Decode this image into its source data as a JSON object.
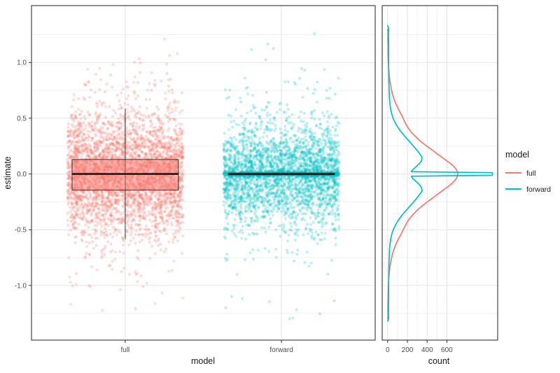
{
  "colors": {
    "full": "#F8766D",
    "forward": "#00BFC4",
    "grid_major": "#E3E3E3",
    "grid_minor": "#F1F1F1",
    "panel_border": "#333333",
    "axis_text": "#4D4D4D",
    "box_median": "#1A1A1A",
    "background": "#FFFFFF"
  },
  "legend": {
    "title": "model",
    "entries": [
      {
        "label": "full",
        "color": "#F8766D"
      },
      {
        "label": "forward",
        "color": "#00BFC4"
      }
    ]
  },
  "chart_data": [
    {
      "type": "scatter",
      "panel": "left",
      "title": "",
      "xlabel": "model",
      "ylabel": "estimate",
      "categories": [
        "full",
        "forward"
      ],
      "yticks": [
        -1.0,
        -0.5,
        0.0,
        0.5,
        1.0
      ],
      "ytick_labels": [
        "-1.0",
        "-0.5",
        "0.0",
        "0.5",
        "1.0"
      ],
      "yticks_minor": [
        -1.25,
        -0.75,
        -0.25,
        0.25,
        0.75,
        1.25
      ],
      "ylim": [
        -1.49,
        1.51
      ],
      "jitter_width": 0.37,
      "point_alpha": 0.25,
      "series": [
        {
          "name": "full",
          "color": "#F8766D",
          "n_points": 3600,
          "distribution": {
            "mixture": [
              {
                "weight": 0.88,
                "sd": 0.27
              },
              {
                "weight": 0.12,
                "sd": 0.52
              }
            ],
            "clip": 1.28
          },
          "boxplot": {
            "lower_whisker": -0.585,
            "q1": -0.145,
            "median": 0.0,
            "q3": 0.13,
            "upper_whisker": 0.585,
            "box_halfwidth": 0.34
          }
        },
        {
          "name": "forward",
          "color": "#00BFC4",
          "n_points": 3600,
          "distribution": {
            "mixture": [
              {
                "weight": 0.22,
                "sd": 0.012
              },
              {
                "weight": 0.63,
                "sd": 0.22
              },
              {
                "weight": 0.12,
                "sd": 0.38
              },
              {
                "weight": 0.03,
                "sd": 0.6
              }
            ],
            "clip": 1.3
          },
          "boxplot": {
            "lower_whisker": -0.01,
            "q1": -0.008,
            "median": 0.0,
            "q3": 0.008,
            "upper_whisker": 0.01,
            "box_halfwidth": 0.34
          }
        }
      ]
    },
    {
      "type": "line",
      "panel": "right",
      "title": "",
      "xlabel": "count",
      "ylabel": "",
      "xticks": [
        0,
        200,
        400,
        600
      ],
      "xticks_minor": [
        100,
        300,
        500
      ],
      "xlim": [
        -55,
        1115
      ],
      "ylim": [
        -1.49,
        1.51
      ],
      "series": [
        {
          "name": "full",
          "color": "#F8766D",
          "points": [
            [
              1.3,
              1
            ],
            [
              1.26,
              3
            ],
            [
              1.2,
              2
            ],
            [
              1.14,
              4
            ],
            [
              1.08,
              3
            ],
            [
              1.02,
              6
            ],
            [
              0.97,
              9
            ],
            [
              0.92,
              13
            ],
            [
              0.87,
              18
            ],
            [
              0.82,
              26
            ],
            [
              0.77,
              36
            ],
            [
              0.72,
              48
            ],
            [
              0.67,
              65
            ],
            [
              0.62,
              88
            ],
            [
              0.57,
              115
            ],
            [
              0.53,
              140
            ],
            [
              0.49,
              162
            ],
            [
              0.46,
              178
            ],
            [
              0.43,
              196
            ],
            [
              0.4,
              218
            ],
            [
              0.37,
              244
            ],
            [
              0.34,
              278
            ],
            [
              0.31,
              312
            ],
            [
              0.28,
              352
            ],
            [
              0.25,
              398
            ],
            [
              0.22,
              444
            ],
            [
              0.19,
              488
            ],
            [
              0.16,
              534
            ],
            [
              0.13,
              580
            ],
            [
              0.1,
              628
            ],
            [
              0.07,
              668
            ],
            [
              0.04,
              696
            ],
            [
              0.01,
              712
            ],
            [
              -0.02,
              708
            ],
            [
              -0.05,
              688
            ],
            [
              -0.08,
              658
            ],
            [
              -0.11,
              618
            ],
            [
              -0.14,
              570
            ],
            [
              -0.17,
              524
            ],
            [
              -0.2,
              478
            ],
            [
              -0.23,
              434
            ],
            [
              -0.26,
              388
            ],
            [
              -0.29,
              344
            ],
            [
              -0.32,
              306
            ],
            [
              -0.35,
              272
            ],
            [
              -0.38,
              240
            ],
            [
              -0.41,
              214
            ],
            [
              -0.44,
              192
            ],
            [
              -0.47,
              175
            ],
            [
              -0.5,
              158
            ],
            [
              -0.54,
              136
            ],
            [
              -0.58,
              110
            ],
            [
              -0.63,
              84
            ],
            [
              -0.68,
              62
            ],
            [
              -0.73,
              46
            ],
            [
              -0.78,
              34
            ],
            [
              -0.83,
              24
            ],
            [
              -0.88,
              17
            ],
            [
              -0.93,
              12
            ],
            [
              -0.99,
              8
            ],
            [
              -1.05,
              5
            ],
            [
              -1.12,
              4
            ],
            [
              -1.19,
              2
            ],
            [
              -1.26,
              3
            ],
            [
              -1.3,
              1
            ]
          ]
        },
        {
          "name": "forward",
          "color": "#00BFC4",
          "points": [
            [
              1.33,
              0
            ],
            [
              1.31,
              10
            ],
            [
              1.24,
              9
            ],
            [
              1.17,
              11
            ],
            [
              1.1,
              10
            ],
            [
              1.02,
              11
            ],
            [
              0.95,
              10
            ],
            [
              0.88,
              12
            ],
            [
              0.81,
              13
            ],
            [
              0.74,
              15
            ],
            [
              0.68,
              18
            ],
            [
              0.63,
              23
            ],
            [
              0.58,
              31
            ],
            [
              0.53,
              44
            ],
            [
              0.49,
              60
            ],
            [
              0.45,
              82
            ],
            [
              0.41,
              110
            ],
            [
              0.37,
              144
            ],
            [
              0.33,
              182
            ],
            [
              0.29,
              222
            ],
            [
              0.25,
              262
            ],
            [
              0.21,
              300
            ],
            [
              0.18,
              326
            ],
            [
              0.15,
              348
            ],
            [
              0.12,
              344
            ],
            [
              0.09,
              318
            ],
            [
              0.06,
              282
            ],
            [
              0.04,
              256
            ],
            [
              0.02,
              240
            ],
            [
              0.012,
              1058
            ],
            [
              0.0,
              1065
            ],
            [
              -0.012,
              1058
            ],
            [
              -0.02,
              240
            ],
            [
              -0.04,
              254
            ],
            [
              -0.06,
              280
            ],
            [
              -0.09,
              316
            ],
            [
              -0.12,
              342
            ],
            [
              -0.15,
              350
            ],
            [
              -0.18,
              328
            ],
            [
              -0.21,
              302
            ],
            [
              -0.25,
              264
            ],
            [
              -0.29,
              224
            ],
            [
              -0.33,
              184
            ],
            [
              -0.37,
              146
            ],
            [
              -0.41,
              112
            ],
            [
              -0.45,
              84
            ],
            [
              -0.49,
              62
            ],
            [
              -0.53,
              45
            ],
            [
              -0.58,
              32
            ],
            [
              -0.63,
              24
            ],
            [
              -0.68,
              19
            ],
            [
              -0.74,
              16
            ],
            [
              -0.81,
              14
            ],
            [
              -0.88,
              12
            ],
            [
              -0.95,
              11
            ],
            [
              -1.02,
              10
            ],
            [
              -1.1,
              11
            ],
            [
              -1.17,
              10
            ],
            [
              -1.24,
              9
            ],
            [
              -1.3,
              10
            ],
            [
              -1.32,
              0
            ]
          ]
        }
      ]
    }
  ]
}
